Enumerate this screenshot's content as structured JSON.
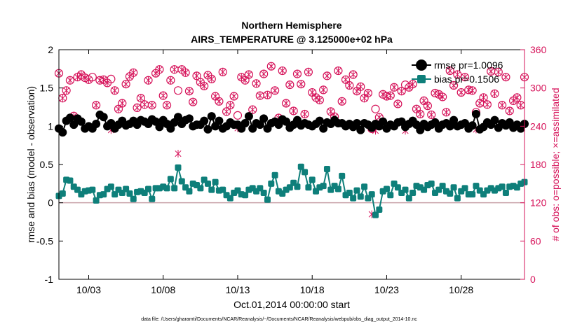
{
  "chart_data": {
    "type": "line",
    "title": "Northern Hemisphere",
    "subtitle": "AIRS_TEMPERATURE @ 3.125000e+02 hPa",
    "xlabel": "Oct.01,2014 00:00:00 start",
    "ylabel_left": "rmse and bias (model - observation)",
    "ylabel_right": "# of obs: o=possible; ×=assimilated",
    "footnote": "data file: /Users/gharamti/Documents/NCAR/Reanalysis/~/Documents/NCAR/Reanalysis/webpub/obs_diag_output_2014-10.nc",
    "xlim": [
      1.0,
      32.25
    ],
    "ylim_left": [
      -1,
      2
    ],
    "ylim_right": [
      0,
      360
    ],
    "x_ticks": [
      3,
      8,
      13,
      18,
      23,
      28
    ],
    "x_tick_labels": [
      "10/03",
      "10/08",
      "10/13",
      "10/18",
      "10/23",
      "10/28"
    ],
    "y_left_ticks": [
      -1,
      -0.5,
      0,
      0.5,
      1,
      1.5,
      2
    ],
    "y_left_tick_labels": [
      "-1",
      "-0.5",
      "0",
      "0.5",
      "1",
      "1.5",
      "2"
    ],
    "y_right_ticks": [
      0,
      60,
      120,
      180,
      240,
      300,
      360
    ],
    "y_right_tick_labels": [
      "0",
      "60",
      "120",
      "180",
      "240",
      "300",
      "360"
    ],
    "legend": {
      "location": "top-right",
      "entries": [
        {
          "label": "rmse pr=1.0096",
          "series": "rmse"
        },
        {
          "label": "bias pr=0.1506",
          "series": "bias"
        }
      ]
    },
    "colors": {
      "rmse": "#000000",
      "bias": "#0e7f7a",
      "obs": "#d6135a",
      "zero_line": "#c8a0a8",
      "axis": "#000000"
    },
    "x": [
      1.0,
      1.25,
      1.5,
      1.75,
      2.0,
      2.25,
      2.5,
      2.75,
      3.0,
      3.25,
      3.5,
      3.75,
      4.0,
      4.25,
      4.5,
      4.75,
      5.0,
      5.25,
      5.5,
      5.75,
      6.0,
      6.25,
      6.5,
      6.75,
      7.0,
      7.25,
      7.5,
      7.75,
      8.0,
      8.25,
      8.5,
      8.75,
      9.0,
      9.25,
      9.5,
      9.75,
      10.0,
      10.25,
      10.5,
      10.75,
      11.0,
      11.25,
      11.5,
      11.75,
      12.0,
      12.25,
      12.5,
      12.75,
      13.0,
      13.25,
      13.5,
      13.75,
      14.0,
      14.25,
      14.5,
      14.75,
      15.0,
      15.25,
      15.5,
      15.75,
      16.0,
      16.25,
      16.5,
      16.75,
      17.0,
      17.25,
      17.5,
      17.75,
      18.0,
      18.25,
      18.5,
      18.75,
      19.0,
      19.25,
      19.5,
      19.75,
      20.0,
      20.25,
      20.5,
      20.75,
      21.0,
      21.25,
      21.5,
      21.75,
      22.0,
      22.25,
      22.5,
      22.75,
      23.0,
      23.25,
      23.5,
      23.75,
      24.0,
      24.25,
      24.5,
      24.75,
      25.0,
      25.25,
      25.5,
      25.75,
      26.0,
      26.25,
      26.5,
      26.75,
      27.0,
      27.25,
      27.5,
      27.75,
      28.0,
      28.25,
      28.5,
      28.75,
      29.0,
      29.25,
      29.5,
      29.75,
      30.0,
      30.25,
      30.5,
      30.75,
      31.0,
      31.25,
      31.5,
      31.75,
      32.0,
      32.25
    ],
    "series": [
      {
        "name": "rmse",
        "marker": "filled-circle",
        "values": [
          0.97,
          0.92,
          1.07,
          1.11,
          1.02,
          1.1,
          1.06,
          0.97,
          1.0,
          0.97,
          1.03,
          1.15,
          1.12,
          1.0,
          1.04,
          0.97,
          1.02,
          1.07,
          1.01,
          1.03,
          1.07,
          1.02,
          1.08,
          1.06,
          1.03,
          1.09,
          1.06,
          0.99,
          1.08,
          1.03,
          0.97,
          1.05,
          1.12,
          1.03,
          1.08,
          1.1,
          1.0,
          1.02,
          1.02,
          1.07,
          0.96,
          1.13,
          1.0,
          1.07,
          0.97,
          1.0,
          1.05,
          1.02,
          1.02,
          0.97,
          1.04,
          1.13,
          0.97,
          1.04,
          1.02,
          1.1,
          0.97,
          1.04,
          1.06,
          1.02,
          1.09,
          1.06,
          0.98,
          1.02,
          1.08,
          1.01,
          1.04,
          1.02,
          1.0,
          1.03,
          1.07,
          0.97,
          1.05,
          1.03,
          1.08,
          1.04,
          1.04,
          1.0,
          1.03,
          0.99,
          1.04,
          0.95,
          1.04,
          1.02,
          0.98,
          1.03,
          1.0,
          1.06,
          0.97,
          1.02,
          1.0,
          1.05,
          1.06,
          0.99,
          1.03,
          1.07,
          1.02,
          0.95,
          1.03,
          0.99,
          1.02,
          1.05,
          0.97,
          1.02,
          1.04,
          1.0,
          1.08,
          1.0,
          1.02,
          1.04,
          0.97,
          1.01,
          1.16,
          0.96,
          0.99,
          1.05,
          1.02,
          1.08,
          0.98,
          1.04,
          1.01,
          1.05,
          0.98,
          1.02,
          0.97,
          1.03
        ]
      },
      {
        "name": "bias",
        "marker": "filled-square",
        "values": [
          0.09,
          0.12,
          0.3,
          0.29,
          0.21,
          0.17,
          0.11,
          0.15,
          0.16,
          0.17,
          0.03,
          0.1,
          0.11,
          0.18,
          0.21,
          0.11,
          0.17,
          0.13,
          0.18,
          0.12,
          0.05,
          0.14,
          0.15,
          0.13,
          0.18,
          0.05,
          0.19,
          0.19,
          0.21,
          0.19,
          0.31,
          0.19,
          0.46,
          0.28,
          0.2,
          0.15,
          0.25,
          0.23,
          0.19,
          0.3,
          0.25,
          0.17,
          0.27,
          0.16,
          0.17,
          0.1,
          0.06,
          0.13,
          0.16,
          0.11,
          0.1,
          0.17,
          0.19,
          0.15,
          0.19,
          0.13,
          0.04,
          0.25,
          0.36,
          0.15,
          0.12,
          0.17,
          0.2,
          0.26,
          0.21,
          0.47,
          0.4,
          0.2,
          0.3,
          0.15,
          0.2,
          0.22,
          0.44,
          0.17,
          0.22,
          0.18,
          0.35,
          0.1,
          0.13,
          0.06,
          0.16,
          0.08,
          0.21,
          0.06,
          0.11,
          -0.16,
          -0.09,
          0.15,
          0.18,
          0.1,
          0.25,
          0.2,
          0.13,
          0.17,
          0.06,
          0.13,
          0.22,
          0.2,
          0.17,
          0.23,
          0.25,
          0.13,
          0.17,
          0.22,
          0.15,
          0.12,
          0.2,
          0.06,
          0.15,
          0.19,
          0.11,
          0.11,
          0.22,
          0.16,
          0.11,
          0.16,
          0.19,
          0.16,
          0.19,
          0.21,
          0.13,
          0.21,
          0.22,
          0.2,
          0.25,
          0.27
        ]
      }
    ],
    "obs_possible": [
      323,
      284,
      296,
      312,
      256,
      317,
      321,
      316,
      313,
      317,
      273,
      312,
      313,
      308,
      314,
      296,
      267,
      276,
      306,
      318,
      324,
      269,
      284,
      274,
      312,
      273,
      323,
      329,
      288,
      273,
      312,
      329,
      296,
      329,
      324,
      295,
      278,
      319,
      309,
      303,
      320,
      314,
      287,
      279,
      325,
      263,
      273,
      287,
      257,
      317,
      312,
      321,
      266,
      307,
      288,
      322,
      289,
      334,
      296,
      253,
      327,
      276,
      305,
      264,
      322,
      306,
      259,
      325,
      293,
      285,
      281,
      297,
      319,
      263,
      255,
      327,
      279,
      313,
      304,
      321,
      295,
      302,
      284,
      292,
      236,
      267,
      254,
      290,
      287,
      288,
      301,
      275,
      295,
      305,
      301,
      306,
      267,
      259,
      280,
      272,
      258,
      292,
      290,
      286,
      262,
      327,
      304,
      321,
      293,
      317,
      297,
      296,
      262,
      276,
      285,
      274,
      326,
      291,
      325,
      273,
      317,
      264,
      280,
      285,
      273,
      317
    ],
    "obs_assimilated": [
      323,
      284,
      296,
      312,
      256,
      317,
      321,
      316,
      313,
      237,
      273,
      312,
      313,
      308,
      234,
      296,
      267,
      276,
      306,
      318,
      324,
      269,
      284,
      274,
      312,
      273,
      323,
      329,
      288,
      273,
      312,
      329,
      197,
      329,
      324,
      295,
      278,
      319,
      309,
      303,
      320,
      314,
      287,
      279,
      325,
      263,
      273,
      287,
      237,
      317,
      312,
      321,
      266,
      307,
      288,
      322,
      289,
      334,
      296,
      253,
      327,
      276,
      305,
      264,
      322,
      306,
      259,
      325,
      293,
      285,
      281,
      297,
      319,
      263,
      255,
      327,
      279,
      313,
      304,
      321,
      295,
      302,
      284,
      292,
      102,
      233,
      254,
      290,
      287,
      288,
      301,
      275,
      295,
      233,
      301,
      306,
      267,
      259,
      280,
      272,
      258,
      292,
      290,
      286,
      262,
      327,
      304,
      321,
      293,
      317,
      297,
      296,
      235,
      276,
      285,
      274,
      326,
      291,
      325,
      273,
      317,
      264,
      280,
      285,
      273,
      317
    ]
  }
}
